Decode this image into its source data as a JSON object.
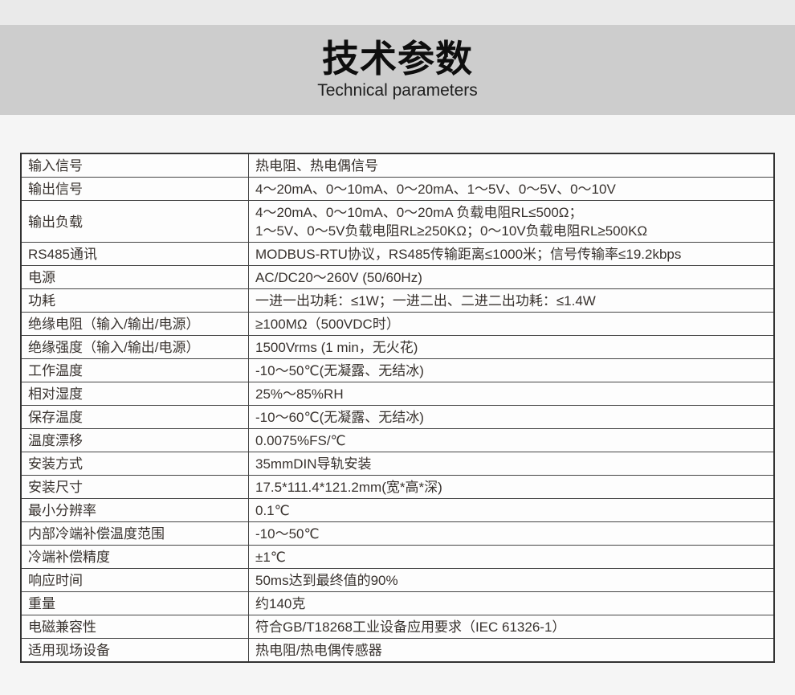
{
  "page": {
    "background_color": "#f5f5f5",
    "top_strip_color": "#eaeaea",
    "header_band_color": "#cdcdcd",
    "table_border_color": "#323232",
    "text_color": "#38322e"
  },
  "header": {
    "title": "技术参数",
    "subtitle": "Technical parameters"
  },
  "table": {
    "rows": [
      {
        "label": "输入信号",
        "value": "热电阻、热电偶信号"
      },
      {
        "label": "输出信号",
        "value": "4～20mA、0～10mA、0～20mA、1～5V、0～5V、0～10V"
      },
      {
        "label": "输出负载",
        "value": "4～20mA、0～10mA、0～20mA 负载电阻RL≤500Ω；\n1～5V、0～5V负载电阻RL≥250KΩ；0～10V负载电阻RL≥500KΩ"
      },
      {
        "label": "RS485通讯",
        "value": "MODBUS-RTU协议，RS485传输距离≤1000米；信号传输率≤19.2kbps"
      },
      {
        "label": "电源",
        "value": "AC/DC20～260V (50/60Hz)"
      },
      {
        "label": "功耗",
        "value": "一进一出功耗：≤1W；一进二出、二进二出功耗：≤1.4W"
      },
      {
        "label": "绝缘电阻（输入/输出/电源）",
        "value": "≥100MΩ（500VDC时）"
      },
      {
        "label": "绝缘强度（输入/输出/电源）",
        "value": "1500Vrms (1 min，无火花)"
      },
      {
        "label": "工作温度",
        "value": "-10～50℃(无凝露、无结冰)"
      },
      {
        "label": "相对湿度",
        "value": "25%～85%RH"
      },
      {
        "label": "保存温度",
        "value": "-10～60℃(无凝露、无结冰)"
      },
      {
        "label": "温度漂移",
        "value": "0.0075%FS/℃"
      },
      {
        "label": "安装方式",
        "value": "35mmDIN导轨安装"
      },
      {
        "label": "安装尺寸",
        "value": "17.5*111.4*121.2mm(宽*高*深)"
      },
      {
        "label": "最小分辨率",
        "value": "0.1℃"
      },
      {
        "label": "内部冷端补偿温度范围",
        "value": "-10～50℃"
      },
      {
        "label": "冷端补偿精度",
        "value": "±1℃"
      },
      {
        "label": "响应时间",
        "value": "50ms达到最终值的90%"
      },
      {
        "label": "重量",
        "value": "约140克"
      },
      {
        "label": "电磁兼容性",
        "value": "符合GB/T18268工业设备应用要求（IEC 61326-1）"
      },
      {
        "label": "适用现场设备",
        "value": "热电阻/热电偶传感器"
      }
    ]
  }
}
